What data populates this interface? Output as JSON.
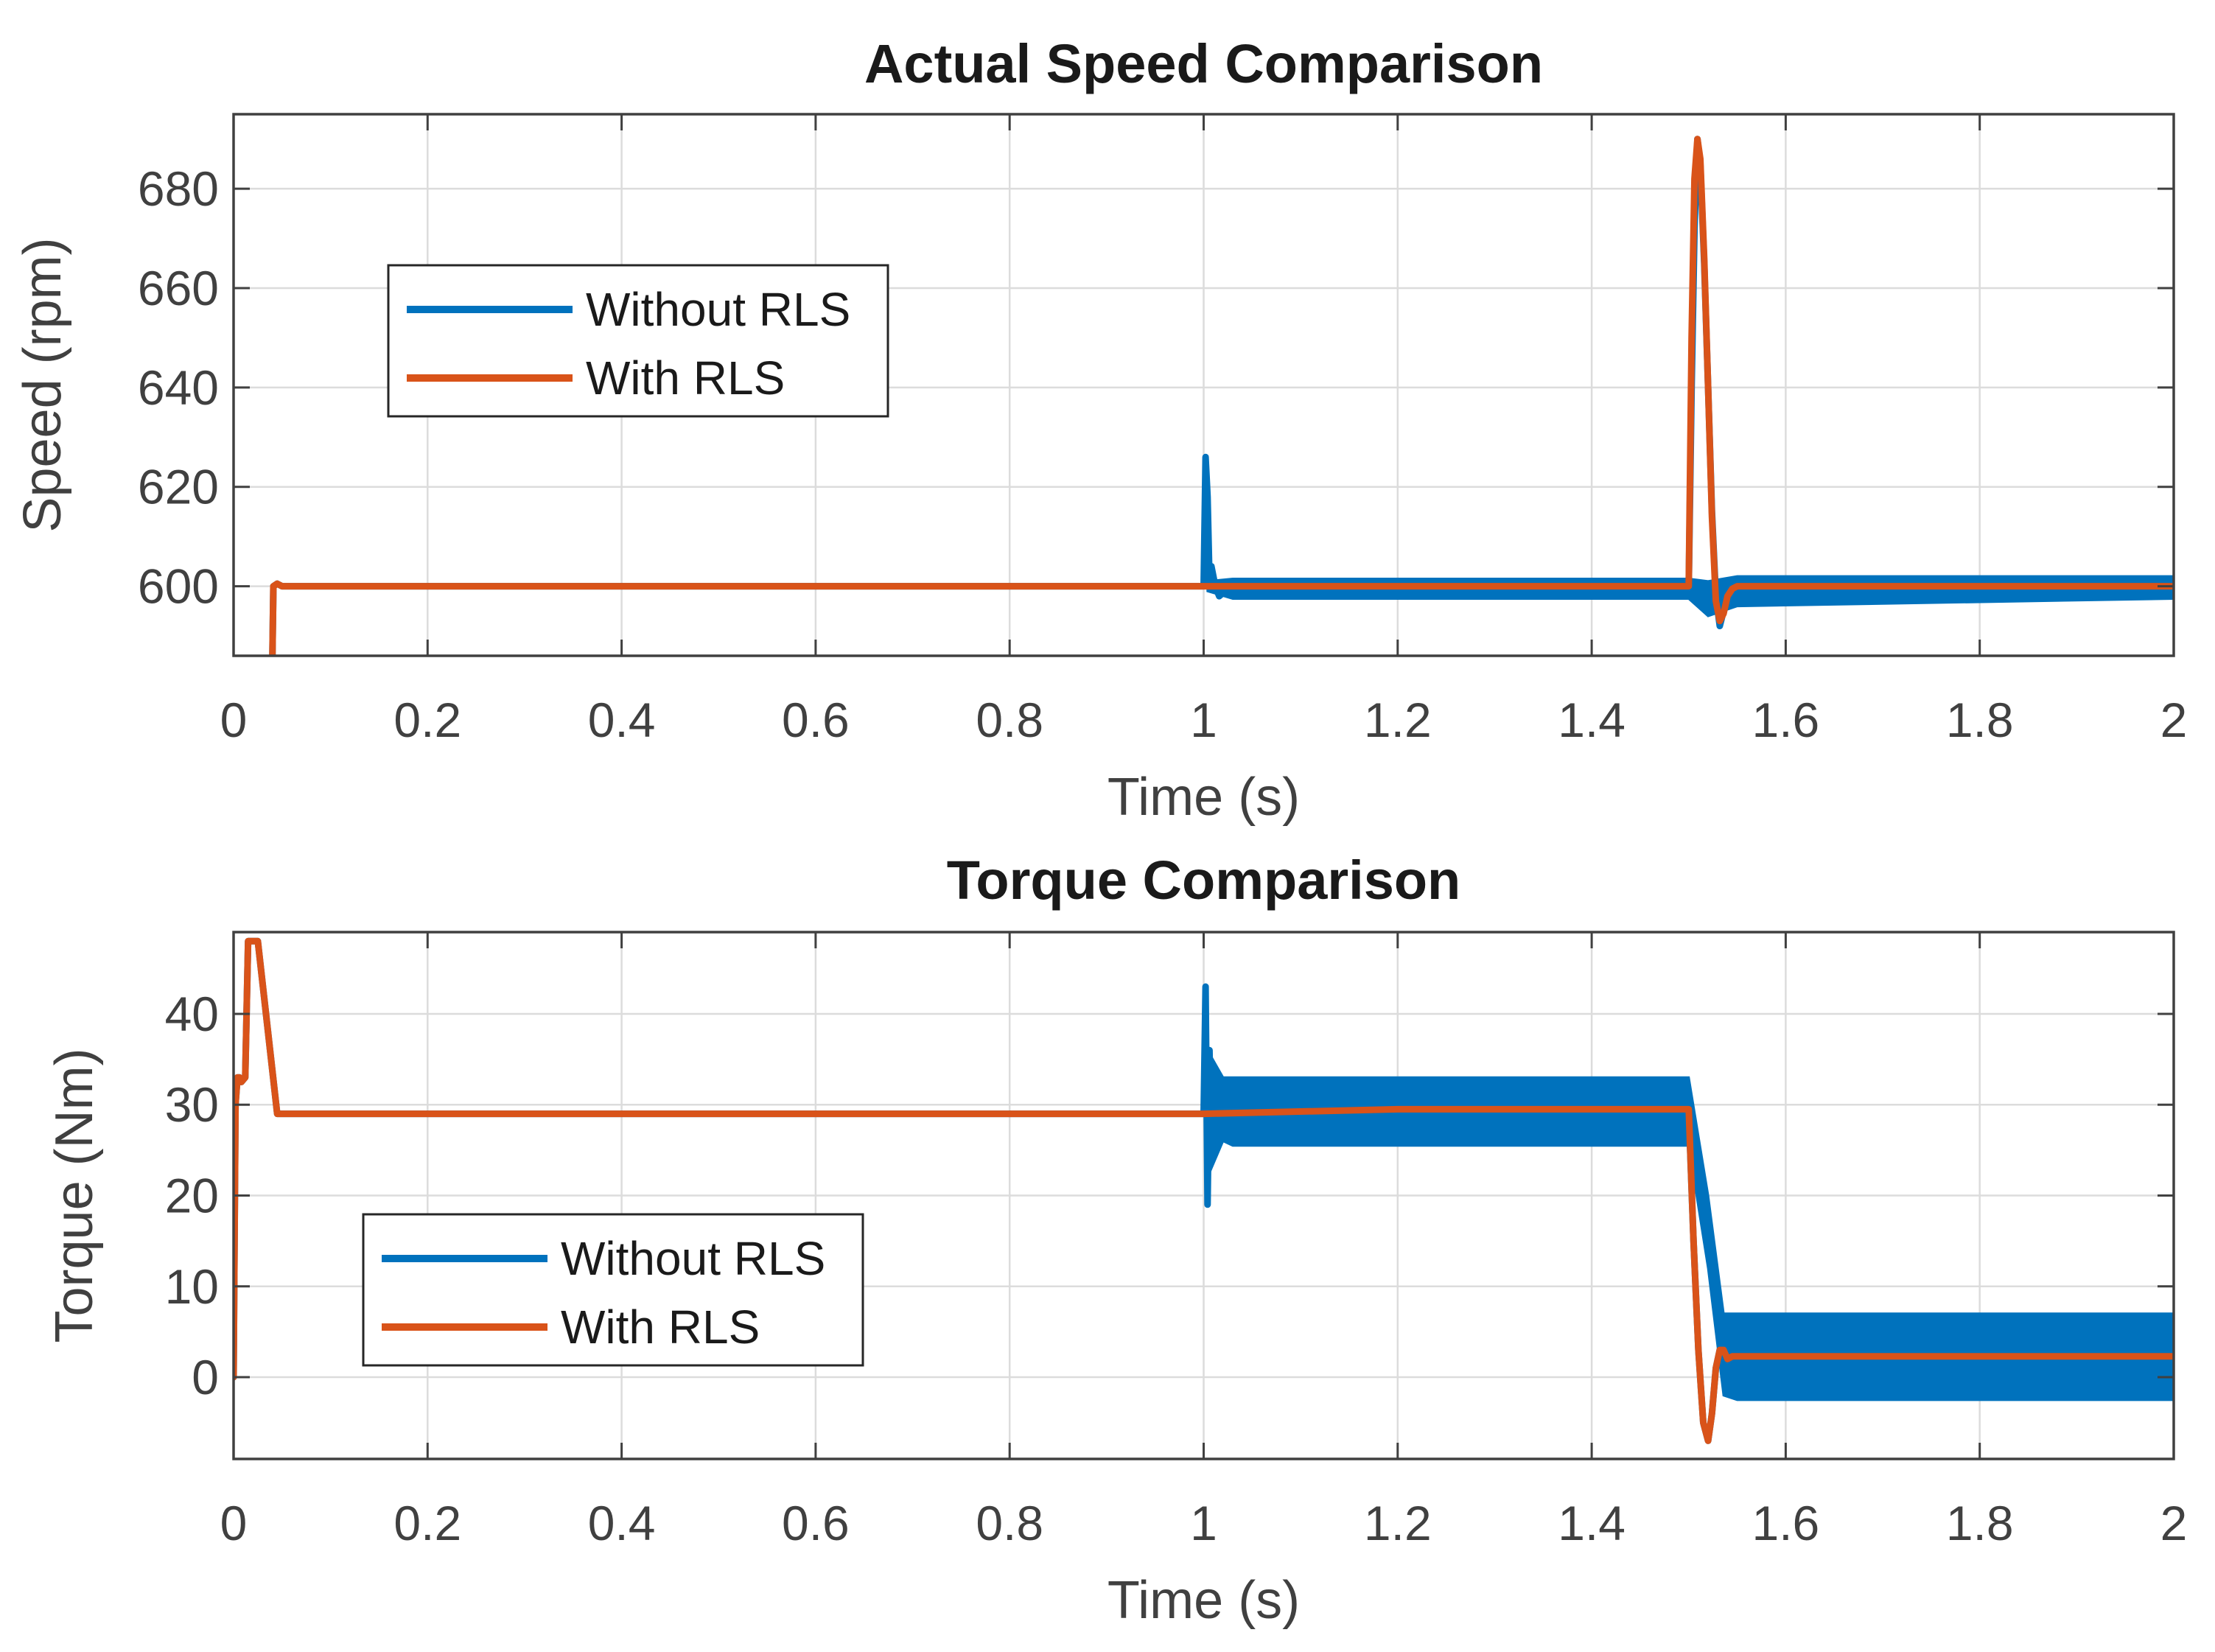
{
  "chart_data": [
    {
      "type": "line",
      "title": "Actual Speed Comparison",
      "xlabel": "Time (s)",
      "ylabel": "Speed (rpm)",
      "xlim": [
        0,
        2
      ],
      "ylim": [
        586,
        695
      ],
      "xticks": [
        0,
        0.2,
        0.4,
        0.6,
        0.8,
        1,
        1.2,
        1.4,
        1.6,
        1.8,
        2
      ],
      "xtick_labels": [
        "0",
        "0.2",
        "0.4",
        "0.6",
        "0.8",
        "1",
        "1.2",
        "1.4",
        "1.6",
        "1.8",
        "2"
      ],
      "yticks": [
        600,
        620,
        640,
        660,
        680
      ],
      "ytick_labels": [
        "600",
        "620",
        "640",
        "660",
        "680"
      ],
      "grid": true,
      "legend": {
        "position": "upper-left",
        "entries": [
          "Without RLS",
          "With RLS"
        ]
      },
      "series": [
        {
          "name": "Without RLS",
          "color": "#0072BD",
          "x": [
            0.04,
            0.041,
            0.045,
            0.05,
            0.2,
            0.5,
            0.8,
            1.0,
            1.002,
            1.004,
            1.006,
            1.008,
            1.012,
            1.016,
            1.022,
            1.03,
            1.2,
            1.499,
            1.5,
            1.503,
            1.506,
            1.509,
            1.512,
            1.516,
            1.52,
            1.524,
            1.528,
            1.532,
            1.536,
            1.542,
            1.55,
            1.7,
            2.0
          ],
          "y": [
            586,
            600,
            600.5,
            600,
            600,
            600,
            600,
            600,
            626,
            618,
            601,
            604,
            600,
            598,
            599,
            600,
            600,
            600,
            600,
            640,
            672,
            690,
            685,
            665,
            640,
            615,
            598,
            592,
            595,
            598,
            600,
            600,
            600
          ],
          "band": {
            "x": [
              1.004,
              1.03,
              1.5,
              1.52,
              1.55,
              2.0
            ],
            "lo": [
              599,
              597.5,
              597.5,
              594,
              596,
              597.5
            ],
            "hi": [
              601,
              601.5,
              601.5,
              601,
              602,
              602
            ]
          }
        },
        {
          "name": "With RLS",
          "color": "#D95319",
          "x": [
            0.04,
            0.041,
            0.045,
            0.05,
            0.2,
            0.5,
            0.8,
            1.0,
            1.2,
            1.499,
            1.5,
            1.503,
            1.506,
            1.509,
            1.512,
            1.516,
            1.52,
            1.524,
            1.528,
            1.532,
            1.536,
            1.54,
            1.545,
            1.55,
            1.6,
            1.8,
            2.0
          ],
          "y": [
            586,
            600,
            600.5,
            600,
            600,
            600,
            600,
            600,
            600,
            600,
            600,
            650,
            682,
            690,
            686,
            666,
            640,
            614,
            597,
            593,
            594.5,
            598,
            599.5,
            600,
            600,
            600,
            600
          ]
        }
      ]
    },
    {
      "type": "line",
      "title": "Torque Comparison",
      "xlabel": "Time (s)",
      "ylabel": "Torque (Nm)",
      "xlim": [
        0,
        2
      ],
      "ylim": [
        -9,
        49
      ],
      "xticks": [
        0,
        0.2,
        0.4,
        0.6,
        0.8,
        1,
        1.2,
        1.4,
        1.6,
        1.8,
        2
      ],
      "xtick_labels": [
        "0",
        "0.2",
        "0.4",
        "0.6",
        "0.8",
        "1",
        "1.2",
        "1.4",
        "1.6",
        "1.8",
        "2"
      ],
      "yticks": [
        0,
        10,
        20,
        30,
        40
      ],
      "ytick_labels": [
        "0",
        "10",
        "20",
        "30",
        "40"
      ],
      "grid": true,
      "legend": {
        "position": "lower-left",
        "entries": [
          "Without RLS",
          "With RLS"
        ]
      },
      "series": [
        {
          "name": "Without RLS",
          "color": "#0072BD",
          "x": [
            0,
            0.002,
            0.004,
            0.006,
            0.008,
            0.012,
            0.015,
            0.018,
            0.025,
            0.045,
            0.05,
            0.2,
            0.5,
            0.8,
            1.0,
            1.002,
            1.004,
            1.006,
            1.008,
            1.012,
            1.016,
            1.022,
            1.03,
            1.2,
            1.499,
            1.5,
            1.505,
            1.51,
            1.515,
            1.52,
            1.524,
            1.528,
            1.532,
            1.536,
            1.54,
            1.545,
            1.55,
            1.6,
            1.8,
            2.0
          ],
          "y": [
            0,
            30,
            33,
            33,
            32.5,
            33,
            48,
            48,
            48,
            29,
            29,
            29,
            29,
            29,
            29,
            43,
            19,
            36,
            24,
            31,
            28,
            30,
            29.3,
            29.3,
            29.3,
            29.3,
            15,
            3,
            -5,
            -7,
            -4,
            1,
            3,
            3,
            2,
            2.3,
            2.3,
            2.3,
            2.3,
            2.3
          ],
          "band": {
            "x": [
              1.004,
              1.02,
              1.03,
              1.5,
              1.52,
              1.536,
              1.55,
              2.0
            ],
            "lo": [
              22,
              26,
              25.5,
              25.5,
              12,
              -2,
              -2.5,
              -2.5
            ],
            "hi": [
              36,
              33,
              33,
              33,
              20,
              7,
              7,
              7
            ]
          }
        },
        {
          "name": "With RLS",
          "color": "#D95319",
          "x": [
            0,
            0.002,
            0.004,
            0.006,
            0.008,
            0.012,
            0.015,
            0.018,
            0.025,
            0.045,
            0.05,
            0.2,
            0.5,
            0.8,
            1.0,
            1.2,
            1.499,
            1.5,
            1.505,
            1.51,
            1.515,
            1.52,
            1.524,
            1.528,
            1.532,
            1.536,
            1.54,
            1.545,
            1.55,
            1.6,
            1.8,
            2.0
          ],
          "y": [
            0,
            30,
            33,
            33,
            32.5,
            33,
            48,
            48,
            48,
            29,
            29,
            29,
            29,
            29,
            29,
            29.5,
            29.5,
            29.5,
            15,
            3,
            -5,
            -7,
            -4,
            1,
            3,
            3,
            2,
            2.3,
            2.3,
            2.3,
            2.3,
            2.3
          ]
        }
      ]
    }
  ]
}
